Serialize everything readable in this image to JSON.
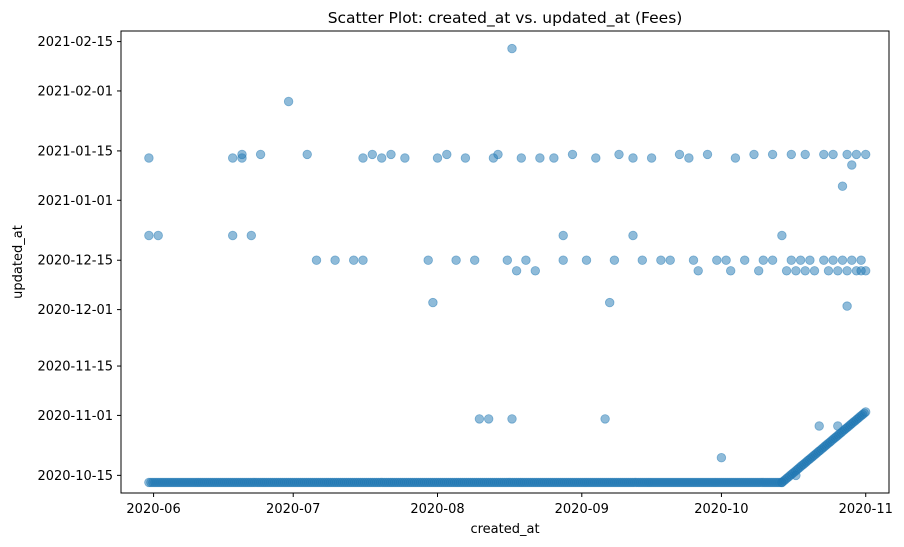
{
  "chart_data": {
    "type": "scatter",
    "title": "Scatter Plot: created_at vs. updated_at (Fees)",
    "xlabel": "created_at",
    "ylabel": "updated_at",
    "xlim": [
      "2020-05-25",
      "2020-11-06"
    ],
    "ylim": [
      "2020-10-10",
      "2021-02-18"
    ],
    "x_ticks": [
      "2020-06",
      "2020-07",
      "2020-08",
      "2020-09",
      "2020-10",
      "2020-11"
    ],
    "y_ticks": [
      "2020-10-15",
      "2020-11-01",
      "2020-11-15",
      "2020-12-01",
      "2020-12-15",
      "2021-01-01",
      "2021-01-15",
      "2021-02-01",
      "2021-02-15"
    ],
    "grid": false,
    "color": "#1f77b4",
    "alpha": 0.5,
    "segments": [
      {
        "from": [
          "2020-05-31",
          "2020-10-13"
        ],
        "to": [
          "2020-10-14",
          "2020-10-13"
        ]
      },
      {
        "from": [
          "2020-10-14",
          "2020-10-13"
        ],
        "to": [
          "2020-11-01",
          "2020-11-02"
        ]
      }
    ],
    "points": [
      [
        "2020-05-31",
        "2021-01-13"
      ],
      [
        "2020-05-31",
        "2020-12-22"
      ],
      [
        "2020-06-02",
        "2020-12-22"
      ],
      [
        "2020-06-18",
        "2021-01-13"
      ],
      [
        "2020-06-18",
        "2020-12-22"
      ],
      [
        "2020-06-20",
        "2021-01-13"
      ],
      [
        "2020-06-20",
        "2021-01-14"
      ],
      [
        "2020-06-22",
        "2020-12-22"
      ],
      [
        "2020-06-24",
        "2021-01-14"
      ],
      [
        "2020-06-30",
        "2021-01-29"
      ],
      [
        "2020-07-04",
        "2021-01-14"
      ],
      [
        "2020-07-06",
        "2020-12-15"
      ],
      [
        "2020-07-10",
        "2020-12-15"
      ],
      [
        "2020-07-14",
        "2020-12-15"
      ],
      [
        "2020-07-16",
        "2021-01-13"
      ],
      [
        "2020-07-16",
        "2020-12-15"
      ],
      [
        "2020-07-18",
        "2021-01-14"
      ],
      [
        "2020-07-20",
        "2021-01-13"
      ],
      [
        "2020-07-22",
        "2021-01-14"
      ],
      [
        "2020-07-25",
        "2021-01-13"
      ],
      [
        "2020-07-30",
        "2020-12-15"
      ],
      [
        "2020-07-31",
        "2020-12-03"
      ],
      [
        "2020-08-01",
        "2021-01-13"
      ],
      [
        "2020-08-03",
        "2021-01-14"
      ],
      [
        "2020-08-05",
        "2020-12-15"
      ],
      [
        "2020-08-07",
        "2021-01-13"
      ],
      [
        "2020-08-09",
        "2020-12-15"
      ],
      [
        "2020-08-10",
        "2020-10-31"
      ],
      [
        "2020-08-12",
        "2020-10-31"
      ],
      [
        "2020-08-13",
        "2021-01-13"
      ],
      [
        "2020-08-14",
        "2021-01-14"
      ],
      [
        "2020-08-16",
        "2020-12-15"
      ],
      [
        "2020-08-17",
        "2020-10-31"
      ],
      [
        "2020-08-17",
        "2021-02-13"
      ],
      [
        "2020-08-18",
        "2020-12-12"
      ],
      [
        "2020-08-19",
        "2021-01-13"
      ],
      [
        "2020-08-20",
        "2020-12-15"
      ],
      [
        "2020-08-22",
        "2020-12-12"
      ],
      [
        "2020-08-23",
        "2021-01-13"
      ],
      [
        "2020-08-26",
        "2021-01-13"
      ],
      [
        "2020-08-28",
        "2020-12-15"
      ],
      [
        "2020-08-28",
        "2020-12-22"
      ],
      [
        "2020-08-30",
        "2021-01-14"
      ],
      [
        "2020-09-02",
        "2020-12-15"
      ],
      [
        "2020-09-04",
        "2021-01-13"
      ],
      [
        "2020-09-06",
        "2020-10-31"
      ],
      [
        "2020-09-07",
        "2020-12-03"
      ],
      [
        "2020-09-08",
        "2020-12-15"
      ],
      [
        "2020-09-09",
        "2021-01-14"
      ],
      [
        "2020-09-12",
        "2021-01-13"
      ],
      [
        "2020-09-12",
        "2020-12-22"
      ],
      [
        "2020-09-14",
        "2020-12-15"
      ],
      [
        "2020-09-16",
        "2021-01-13"
      ],
      [
        "2020-09-18",
        "2020-12-15"
      ],
      [
        "2020-09-20",
        "2020-12-15"
      ],
      [
        "2020-09-22",
        "2021-01-14"
      ],
      [
        "2020-09-24",
        "2021-01-13"
      ],
      [
        "2020-09-25",
        "2020-12-15"
      ],
      [
        "2020-09-26",
        "2020-12-12"
      ],
      [
        "2020-09-28",
        "2021-01-14"
      ],
      [
        "2020-09-30",
        "2020-12-15"
      ],
      [
        "2020-10-01",
        "2020-10-20"
      ],
      [
        "2020-10-02",
        "2020-12-15"
      ],
      [
        "2020-10-03",
        "2020-12-12"
      ],
      [
        "2020-10-04",
        "2021-01-13"
      ],
      [
        "2020-10-06",
        "2020-12-15"
      ],
      [
        "2020-10-08",
        "2021-01-14"
      ],
      [
        "2020-10-09",
        "2020-12-12"
      ],
      [
        "2020-10-10",
        "2020-12-15"
      ],
      [
        "2020-10-12",
        "2021-01-14"
      ],
      [
        "2020-10-12",
        "2020-12-15"
      ],
      [
        "2020-10-14",
        "2020-12-22"
      ],
      [
        "2020-10-15",
        "2020-12-12"
      ],
      [
        "2020-10-16",
        "2020-12-15"
      ],
      [
        "2020-10-16",
        "2021-01-14"
      ],
      [
        "2020-10-17",
        "2020-12-12"
      ],
      [
        "2020-10-17",
        "2020-10-15"
      ],
      [
        "2020-10-18",
        "2020-12-15"
      ],
      [
        "2020-10-19",
        "2020-12-12"
      ],
      [
        "2020-10-19",
        "2021-01-14"
      ],
      [
        "2020-10-20",
        "2020-12-15"
      ],
      [
        "2020-10-21",
        "2020-12-12"
      ],
      [
        "2020-10-22",
        "2020-10-29"
      ],
      [
        "2020-10-23",
        "2020-12-15"
      ],
      [
        "2020-10-23",
        "2021-01-14"
      ],
      [
        "2020-10-24",
        "2020-12-12"
      ],
      [
        "2020-10-25",
        "2021-01-14"
      ],
      [
        "2020-10-25",
        "2020-12-15"
      ],
      [
        "2020-10-26",
        "2020-12-12"
      ],
      [
        "2020-10-26",
        "2020-10-29"
      ],
      [
        "2020-10-27",
        "2020-12-15"
      ],
      [
        "2020-10-27",
        "2021-01-05"
      ],
      [
        "2020-10-28",
        "2020-12-12"
      ],
      [
        "2020-10-28",
        "2020-12-02"
      ],
      [
        "2020-10-28",
        "2021-01-14"
      ],
      [
        "2020-10-29",
        "2020-12-15"
      ],
      [
        "2020-10-29",
        "2021-01-11"
      ],
      [
        "2020-10-30",
        "2020-12-12"
      ],
      [
        "2020-10-30",
        "2021-01-14"
      ],
      [
        "2020-10-31",
        "2020-12-15"
      ],
      [
        "2020-10-31",
        "2020-12-12"
      ],
      [
        "2020-11-01",
        "2020-12-12"
      ],
      [
        "2020-11-01",
        "2021-01-14"
      ]
    ]
  }
}
